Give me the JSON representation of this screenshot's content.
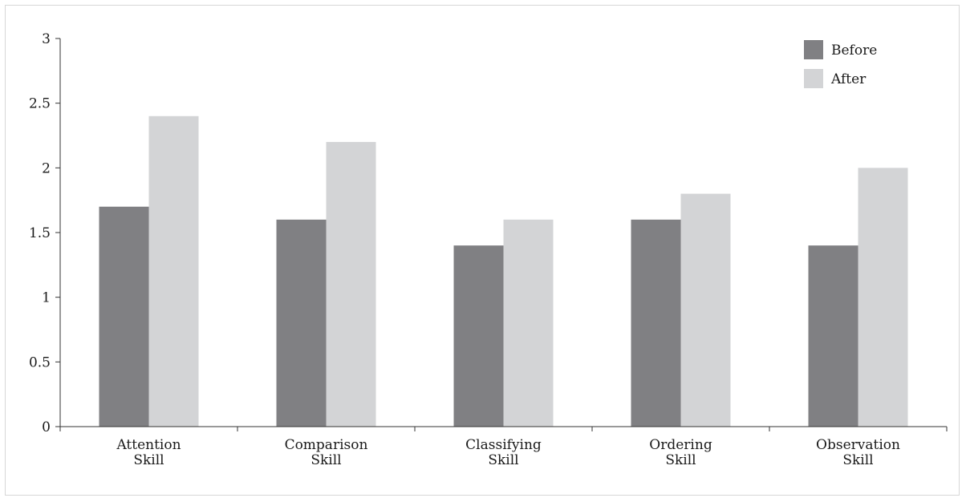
{
  "chart_data": {
    "type": "bar",
    "categories": [
      [
        "Attention",
        "Skill"
      ],
      [
        "Comparison",
        "Skill"
      ],
      [
        "Classifying",
        "Skill"
      ],
      [
        "Ordering",
        "Skill"
      ],
      [
        "Observation",
        "Skill"
      ]
    ],
    "series": [
      {
        "name": "Before",
        "values": [
          1.7,
          1.6,
          1.4,
          1.6,
          1.4
        ],
        "color": "#808083"
      },
      {
        "name": "After",
        "values": [
          2.4,
          2.2,
          1.6,
          1.8,
          2.0
        ],
        "color": "#d3d4d6"
      }
    ],
    "yticks": [
      "0",
      "0.5",
      "1",
      "1.5",
      "2",
      "2.5",
      "3"
    ],
    "ylim": [
      0,
      3
    ],
    "grid": false,
    "legend_position": "top-right",
    "title": "",
    "xlabel": "",
    "ylabel": ""
  }
}
